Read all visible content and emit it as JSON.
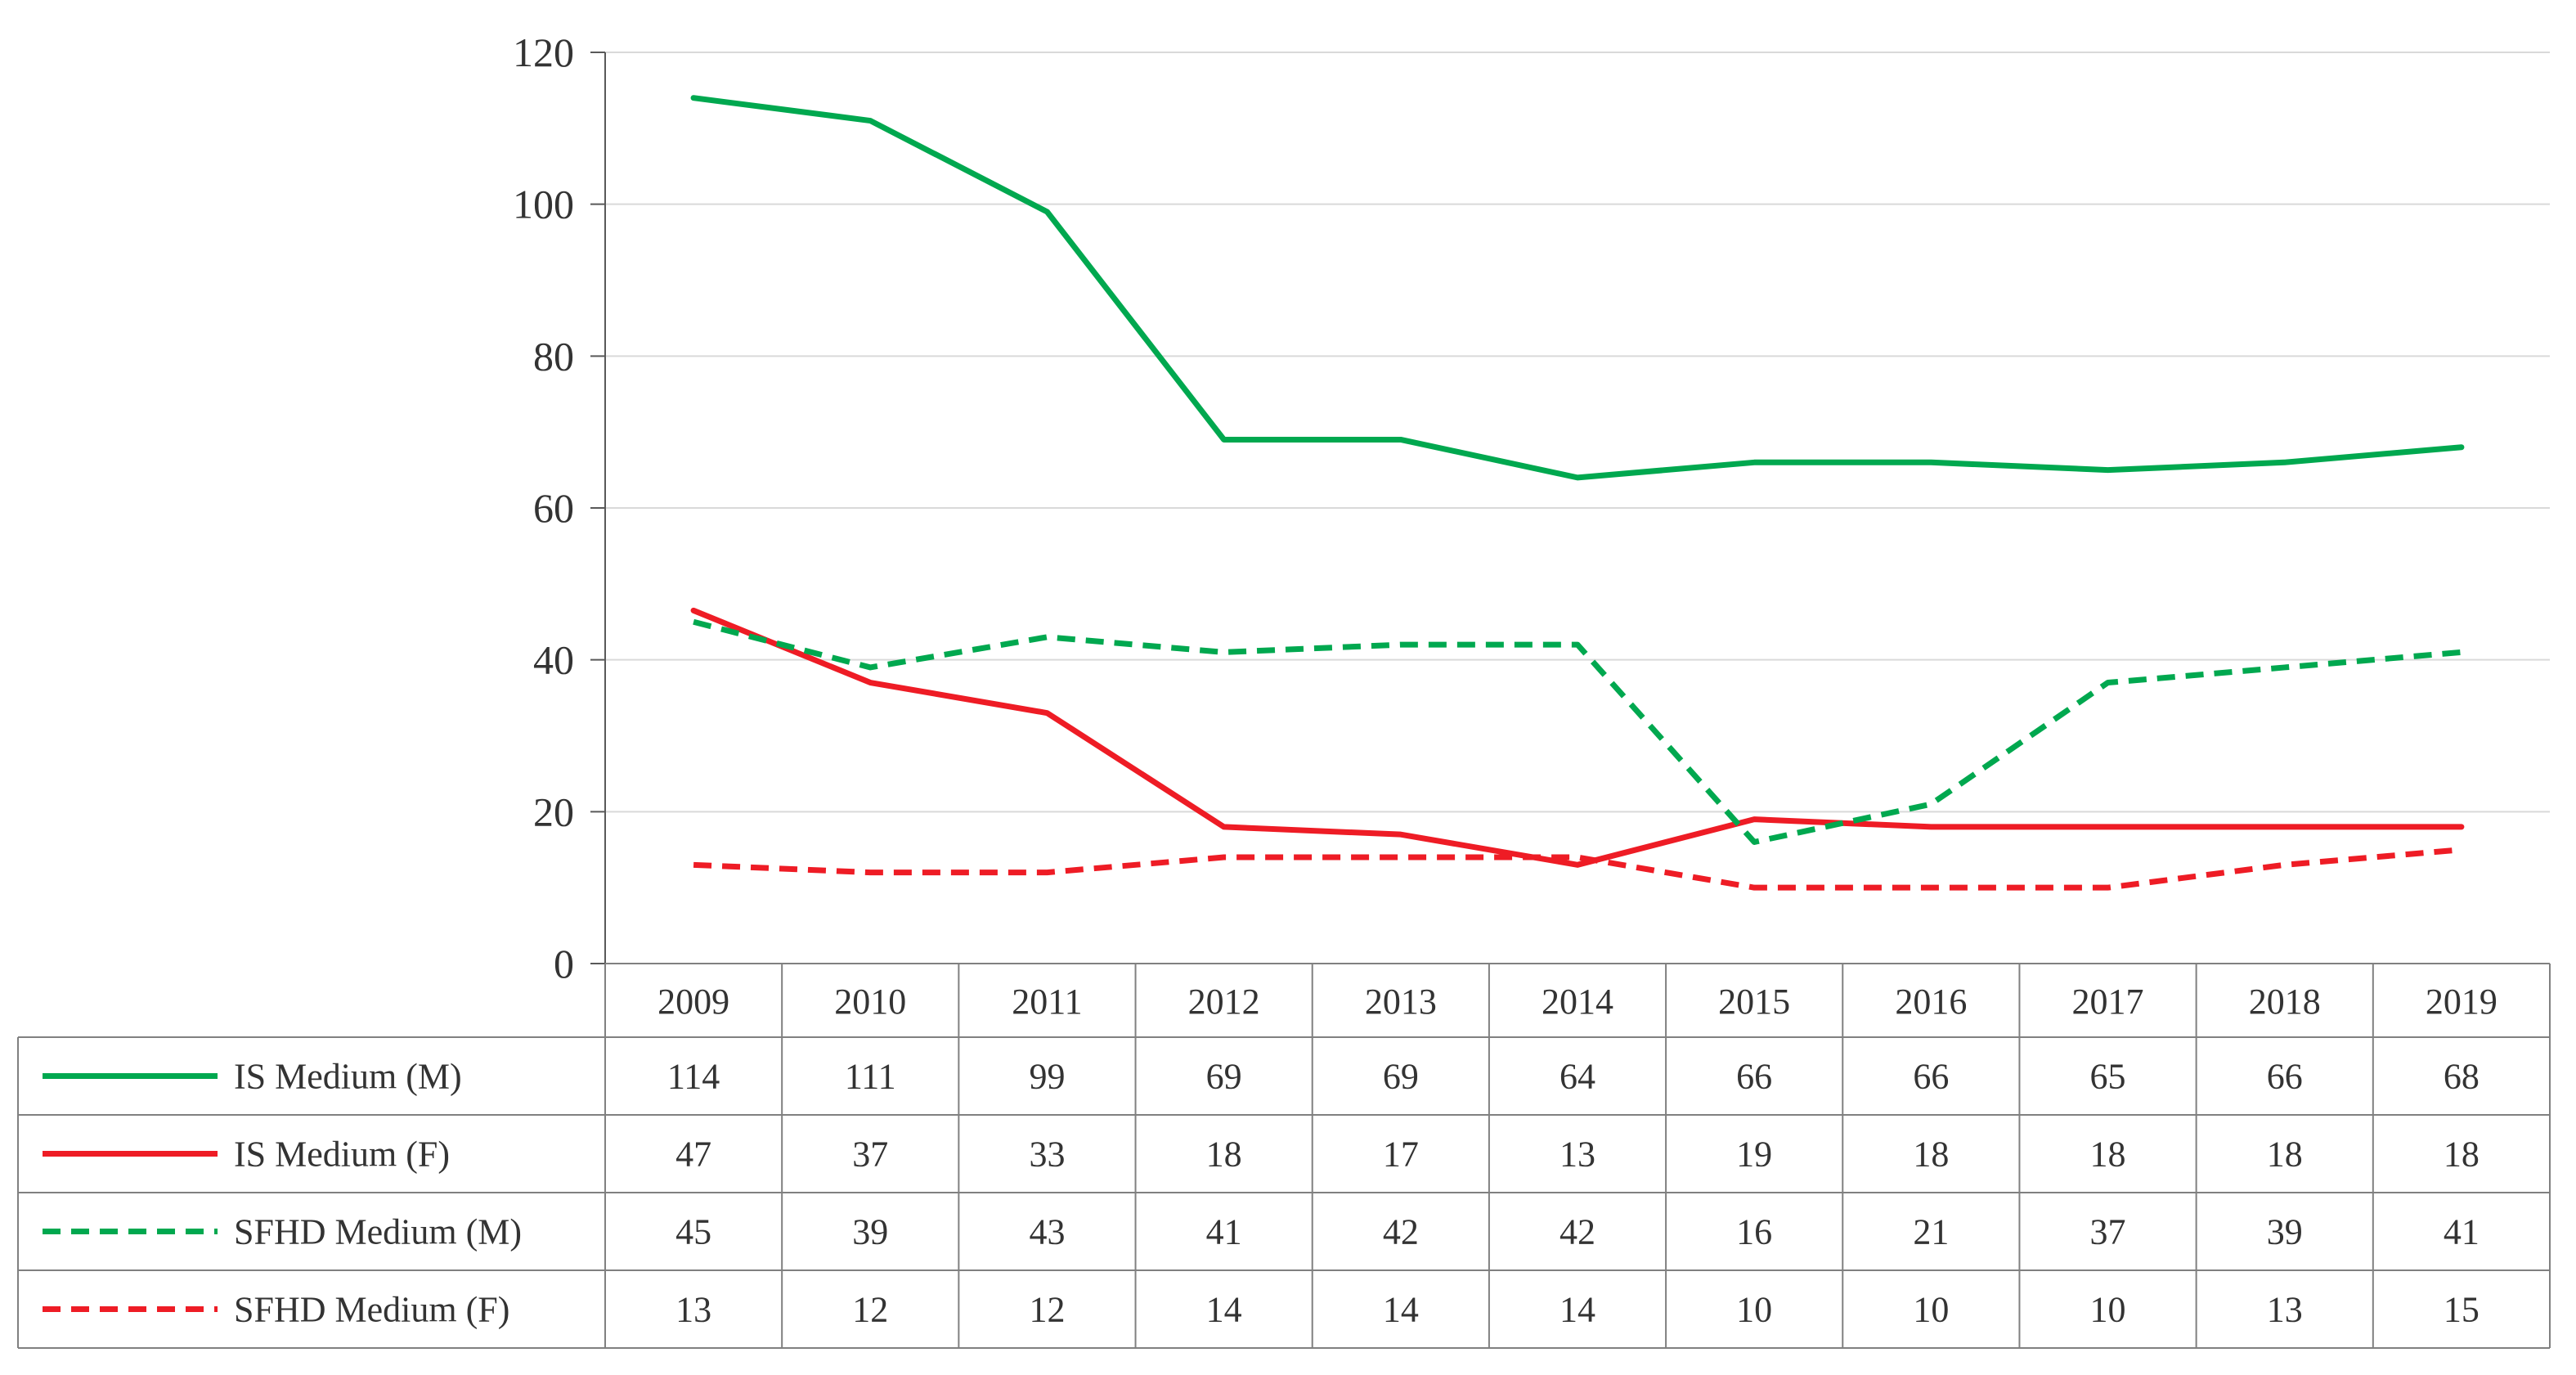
{
  "chart_data": {
    "type": "line",
    "title": "",
    "xlabel": "",
    "ylabel": "",
    "ylim": [
      0,
      120
    ],
    "yticks": [
      0,
      20,
      40,
      60,
      80,
      100,
      120
    ],
    "grid": true,
    "legend": "data-table",
    "categories": [
      "2009",
      "2010",
      "2011",
      "2012",
      "2013",
      "2014",
      "2015",
      "2016",
      "2017",
      "2018",
      "2019"
    ],
    "series": [
      {
        "name": "IS Medium (M)",
        "color": "#00a84f",
        "dashed": false,
        "values": [
          114,
          111,
          99,
          69,
          69,
          64,
          66,
          66,
          65,
          66,
          68
        ],
        "labels": [
          "114",
          "111",
          "99",
          "69",
          "69",
          "64",
          "66",
          "66",
          "65",
          "66",
          "68"
        ]
      },
      {
        "name": "IS Medium (F)",
        "color": "#ee1c25",
        "dashed": false,
        "values": [
          46.5,
          37,
          33,
          18,
          17,
          13,
          19,
          18,
          18,
          18,
          18
        ],
        "labels": [
          "47",
          "37",
          "33",
          "18",
          "17",
          "13",
          "19",
          "18",
          "18",
          "18",
          "18"
        ]
      },
      {
        "name": "SFHD Medium (M)",
        "color": "#00a84f",
        "dashed": true,
        "values": [
          45,
          39,
          43,
          41,
          42,
          42,
          16,
          21,
          37,
          39,
          41
        ],
        "labels": [
          "45",
          "39",
          "43",
          "41",
          "42",
          "42",
          "16",
          "21",
          "37",
          "39",
          "41"
        ]
      },
      {
        "name": "SFHD Medium (F)",
        "color": "#ee1c25",
        "dashed": true,
        "values": [
          13,
          12,
          12,
          14,
          14,
          14,
          10,
          10,
          10,
          13,
          15
        ],
        "labels": [
          "13",
          "12",
          "12",
          "14",
          "14",
          "14",
          "10",
          "10",
          "10",
          "13",
          "15"
        ]
      }
    ]
  }
}
